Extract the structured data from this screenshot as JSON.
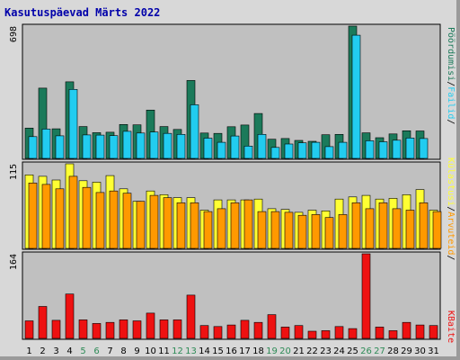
{
  "title": "Kasutuspäevad Märts 2022",
  "chart_data": [
    {
      "type": "bar",
      "categories": [
        "1",
        "2",
        "3",
        "4",
        "5",
        "6",
        "7",
        "8",
        "9",
        "10",
        "11",
        "12",
        "13",
        "14",
        "15",
        "16",
        "17",
        "18",
        "19",
        "20",
        "21",
        "22",
        "23",
        "24",
        "25",
        "26",
        "27",
        "28",
        "29",
        "30",
        "31"
      ],
      "weekend_days": [
        "5",
        "6",
        "12",
        "13",
        "19",
        "20",
        "26",
        "27"
      ],
      "ymax_label": "698",
      "ylim": [
        0,
        698
      ],
      "grid": false,
      "series": [
        {
          "name": "Pöördumisi",
          "color": "#1b7a5a",
          "values": [
            160,
            371,
            156,
            404,
            168,
            136,
            138,
            179,
            177,
            255,
            168,
            153,
            411,
            134,
            132,
            167,
            176,
            237,
            101,
            105,
            95,
            90,
            125,
            127,
            698,
            135,
            109,
            129,
            146,
            145,
            0
          ]
        },
        {
          "name": "Failid",
          "color": "#22ccf0",
          "values": [
            115,
            155,
            119,
            364,
            124,
            123,
            120,
            143,
            134,
            139,
            132,
            127,
            283,
            107,
            85,
            118,
            65,
            127,
            58,
            76,
            82,
            85,
            62,
            85,
            650,
            93,
            88,
            96,
            108,
            105,
            0
          ]
        }
      ]
    },
    {
      "type": "bar",
      "categories": [
        "1",
        "2",
        "3",
        "4",
        "5",
        "6",
        "7",
        "8",
        "9",
        "10",
        "11",
        "12",
        "13",
        "14",
        "15",
        "16",
        "17",
        "18",
        "19",
        "20",
        "21",
        "22",
        "23",
        "24",
        "25",
        "26",
        "27",
        "28",
        "29",
        "30",
        "31"
      ],
      "ymax_label": "115",
      "ylim": [
        0,
        115
      ],
      "grid": false,
      "series": [
        {
          "name": "Külastusi",
          "color": "#ffff33",
          "values": [
            100,
            98,
            93,
            115,
            92,
            90,
            99,
            81,
            64,
            78,
            73,
            69,
            69,
            52,
            66,
            66,
            66,
            67,
            54,
            53,
            49,
            52,
            51,
            67,
            70,
            72,
            67,
            68,
            73,
            80,
            52
          ]
        },
        {
          "name": "Arvuteid",
          "color": "#ff9900",
          "values": [
            89,
            87,
            81,
            98,
            83,
            76,
            78,
            75,
            64,
            72,
            69,
            62,
            62,
            50,
            54,
            62,
            66,
            50,
            50,
            49,
            45,
            46,
            42,
            46,
            62,
            54,
            62,
            54,
            52,
            62,
            50
          ]
        }
      ]
    },
    {
      "type": "bar",
      "categories": [
        "1",
        "2",
        "3",
        "4",
        "5",
        "6",
        "7",
        "8",
        "9",
        "10",
        "11",
        "12",
        "13",
        "14",
        "15",
        "16",
        "17",
        "18",
        "19",
        "20",
        "21",
        "22",
        "23",
        "24",
        "25",
        "26",
        "27",
        "28",
        "29",
        "30",
        "31"
      ],
      "ymax_label": "164",
      "ylim": [
        0,
        164
      ],
      "grid": false,
      "series": [
        {
          "name": "KBaite",
          "color": "#ee1111",
          "values": [
            34,
            62,
            35,
            86,
            36,
            29,
            31,
            36,
            34,
            49,
            36,
            36,
            84,
            25,
            23,
            26,
            35,
            31,
            46,
            22,
            25,
            14,
            15,
            23,
            19,
            164,
            22,
            15,
            31,
            26,
            25
          ]
        }
      ]
    }
  ],
  "right_axis": {
    "top": [
      {
        "text": "Pöördumisi",
        "color": "#1b7a5a"
      },
      {
        "text": "/",
        "color": "#000000"
      },
      {
        "text": "Failid",
        "color": "#22ccf0"
      },
      {
        "text": "/",
        "color": "#000000"
      }
    ],
    "mid": [
      {
        "text": "Külastusi",
        "color": "#ffff33"
      },
      {
        "text": "/",
        "color": "#000000"
      },
      {
        "text": "Arvuteid",
        "color": "#ff9900"
      },
      {
        "text": "/",
        "color": "#000000"
      }
    ],
    "bottom": [
      {
        "text": "KBaite",
        "color": "#ee1111"
      }
    ]
  },
  "colors": {
    "frame": "#d8d8d8",
    "plot_background": "#c0c0c0",
    "weekday_label": "#000000",
    "weekend_label": "#2e8b57",
    "title": "#0000aa"
  }
}
